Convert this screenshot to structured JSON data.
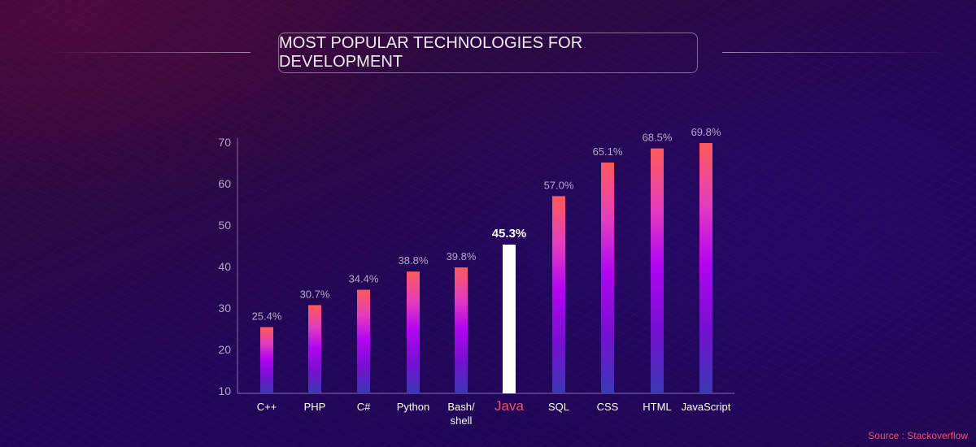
{
  "header": {
    "title": "MOST POPULAR TECHNOLOGIES FOR DEVELOPMENT"
  },
  "source": "Source : Stackoverflow",
  "colors": {
    "bar_top": "#ff5a58",
    "bar_mid_pink": "#e43cc0",
    "bar_mid_purple": "#b204f2",
    "bar_lower_purple": "#7410d0",
    "bar_bottom": "#3a38b4",
    "highlight_bar": "#ffffff",
    "highlight_label": "#f0506a",
    "axis": "#8a6aa8",
    "tick_text": "#b8a8c8",
    "value_text": "#b8a8c8",
    "category_text": "#ffffff"
  },
  "chart_data": {
    "type": "bar",
    "title": "MOST POPULAR TECHNOLOGIES FOR DEVELOPMENT",
    "xlabel": "",
    "ylabel": "",
    "categories": [
      "C++",
      "PHP",
      "C#",
      "Python",
      "Bash/\nshell",
      "Java",
      "SQL",
      "CSS",
      "HTML",
      "JavaScript"
    ],
    "values": [
      25.4,
      30.7,
      34.4,
      38.8,
      39.8,
      45.3,
      57.0,
      65.1,
      68.5,
      69.8
    ],
    "value_labels": [
      "25.4%",
      "30.7%",
      "34.4%",
      "38.8%",
      "39.8%",
      "45.3%",
      "57.0%",
      "65.1%",
      "68.5%",
      "69.8%"
    ],
    "highlight": "Java",
    "yticks": [
      10,
      20,
      30,
      40,
      50,
      60,
      70
    ],
    "ylim": [
      10,
      70
    ],
    "grid": false,
    "legend": "none",
    "source": "Source : Stackoverflow"
  }
}
